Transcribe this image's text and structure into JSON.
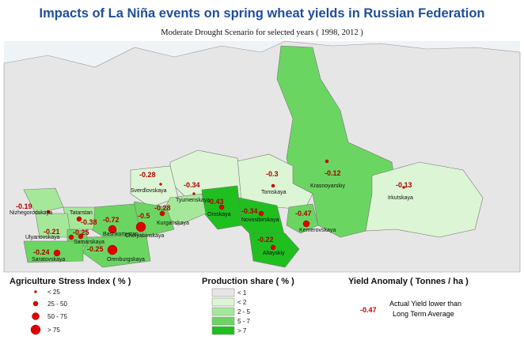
{
  "header": {
    "title": "Impacts of La Niña events on spring wheat yields in Russian Federation",
    "subtitle": "Moderate Drought Scenario for selected years ( 1998, 2012 )"
  },
  "regions": [
    {
      "name": "Nizhegorodskaya",
      "anomaly": -0.19
    },
    {
      "name": "Tatarstan",
      "anomaly": -0.38
    },
    {
      "name": "Ulyanovskaya",
      "anomaly": -0.21
    },
    {
      "name": "Samarskaya",
      "anomaly": -0.25
    },
    {
      "name": "Saratovskaya",
      "anomaly": -0.24
    },
    {
      "name": "Bashkortostan",
      "anomaly": -0.72
    },
    {
      "name": "Orenburgskaya",
      "anomaly": -0.25
    },
    {
      "name": "Chelyabinskaya",
      "anomaly": -0.5
    },
    {
      "name": "Kurganskaya",
      "anomaly": -0.28
    },
    {
      "name": "Sverdlovskaya",
      "anomaly": -0.28
    },
    {
      "name": "Tyumenskaya",
      "anomaly": -0.34
    },
    {
      "name": "Omskaya",
      "anomaly": -0.43
    },
    {
      "name": "Novosibirskaya",
      "anomaly": -0.34
    },
    {
      "name": "Altayskiy",
      "anomaly": -0.22
    },
    {
      "name": "Tomskaya",
      "anomaly": -0.3
    },
    {
      "name": "Kemerovskaya",
      "anomaly": -0.47
    },
    {
      "name": "Krasnoyarskiy",
      "anomaly": -0.12
    },
    {
      "name": "Irkutskaya",
      "anomaly": -0.13
    }
  ],
  "legend": {
    "stress": {
      "title": "Agriculture Stress Index ( % )",
      "items": [
        "< 25",
        "25 - 50",
        "50 - 75",
        "> 75"
      ]
    },
    "production": {
      "title": "Production share ( % )",
      "items": [
        "< 1",
        "< 2",
        "2 - 5",
        "5 - 7",
        "> 7"
      ]
    },
    "anomaly": {
      "title": "Yield Anomaly ( Tonnes / ha )",
      "example": -0.47,
      "text": [
        "Actual Yield lower than",
        "Long Term Average"
      ]
    }
  }
}
